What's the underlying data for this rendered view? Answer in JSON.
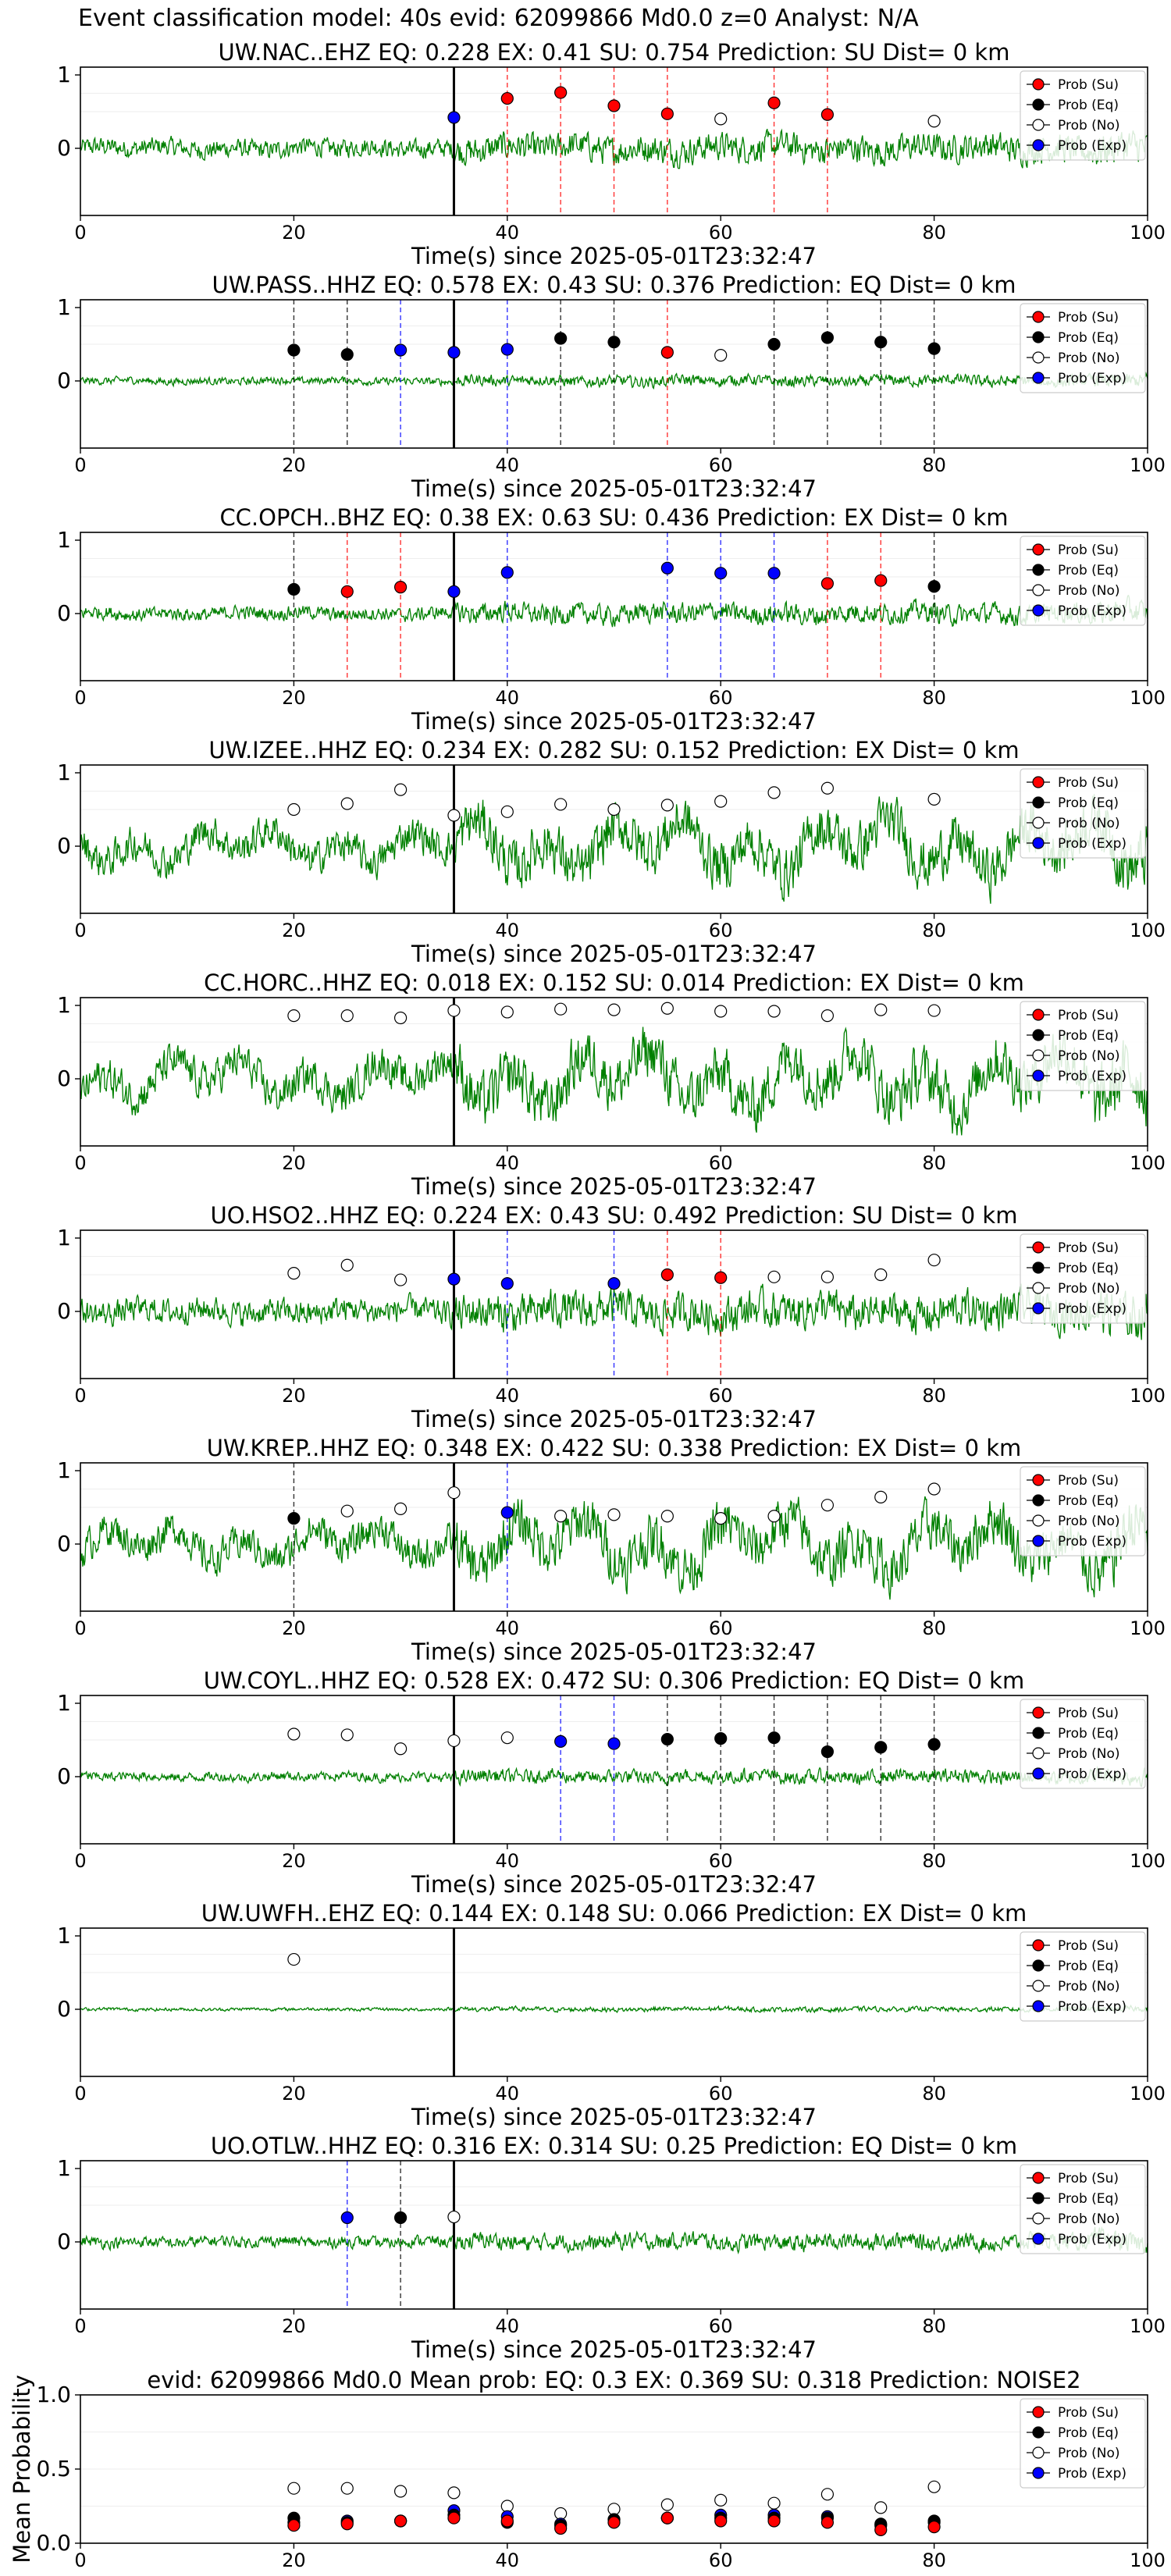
{
  "figure": {
    "suptitle": "Event classification model: 40s evid: 62099866 Md0.0 z=0 Analyst: N/A"
  },
  "legend": {
    "placement": "top-right",
    "entries": [
      {
        "key": "su",
        "label": "Prob (Su)",
        "color": "#ff0000",
        "fill": true
      },
      {
        "key": "eq",
        "label": "Prob (Eq)",
        "color": "#000000",
        "fill": true
      },
      {
        "key": "no",
        "label": "Prob (No)",
        "color": "#ffffff",
        "fill": false
      },
      {
        "key": "exp",
        "label": "Prob (Exp)",
        "color": "#0000ff",
        "fill": true
      }
    ]
  },
  "colors": {
    "waveform": "#008000",
    "su": "#ff0000",
    "eq": "#000000",
    "exp": "#0000ff",
    "no": "#ffffff",
    "event_line": "#000000",
    "su_line": "#ff0000",
    "eq_line": "#000000",
    "exp_line": "#0000ff"
  },
  "chart_data": [
    {
      "type": "line",
      "panel": "waveform",
      "title": "UW.NAC..EHZ   EQ: 0.228  EX: 0.41  SU: 0.754   Prediction: SU    Dist= 0 km",
      "xlabel": "Time(s) since 2025-05-01T23:32:47",
      "ylabel": "",
      "xlim": [
        0,
        100
      ],
      "xticks": [
        "0",
        "20",
        "40",
        "60",
        "80",
        "100"
      ],
      "yticks": [
        "0",
        "1"
      ],
      "event_time": 35,
      "noise_amp": 0.3,
      "points": [
        {
          "t": 35,
          "class": "exp",
          "p": 0.42
        },
        {
          "t": 40,
          "class": "su",
          "p": 0.68
        },
        {
          "t": 45,
          "class": "su",
          "p": 0.76
        },
        {
          "t": 50,
          "class": "su",
          "p": 0.58
        },
        {
          "t": 55,
          "class": "su",
          "p": 0.47
        },
        {
          "t": 60,
          "class": "no",
          "p": 0.4
        },
        {
          "t": 65,
          "class": "su",
          "p": 0.62
        },
        {
          "t": 70,
          "class": "su",
          "p": 0.46
        },
        {
          "t": 80,
          "class": "no",
          "p": 0.37
        }
      ]
    },
    {
      "type": "line",
      "panel": "waveform",
      "title": "UW.PASS..HHZ   EQ: 0.578  EX: 0.43  SU: 0.376   Prediction: EQ    Dist= 0 km",
      "xlabel": "Time(s) since 2025-05-01T23:32:47",
      "ylabel": "",
      "xlim": [
        0,
        100
      ],
      "xticks": [
        "0",
        "20",
        "40",
        "60",
        "80",
        "100"
      ],
      "yticks": [
        "0",
        "1"
      ],
      "event_time": 35,
      "noise_amp": 0.12,
      "points": [
        {
          "t": 20,
          "class": "eq",
          "p": 0.42
        },
        {
          "t": 25,
          "class": "eq",
          "p": 0.36
        },
        {
          "t": 30,
          "class": "exp",
          "p": 0.42
        },
        {
          "t": 35,
          "class": "exp",
          "p": 0.39
        },
        {
          "t": 40,
          "class": "exp",
          "p": 0.43
        },
        {
          "t": 45,
          "class": "eq",
          "p": 0.58
        },
        {
          "t": 50,
          "class": "eq",
          "p": 0.53
        },
        {
          "t": 55,
          "class": "su",
          "p": 0.39
        },
        {
          "t": 60,
          "class": "no",
          "p": 0.35
        },
        {
          "t": 65,
          "class": "eq",
          "p": 0.5
        },
        {
          "t": 70,
          "class": "eq",
          "p": 0.59
        },
        {
          "t": 75,
          "class": "eq",
          "p": 0.53
        },
        {
          "t": 80,
          "class": "eq",
          "p": 0.44
        }
      ]
    },
    {
      "type": "line",
      "panel": "waveform",
      "title": "CC.OPCH..BHZ   EQ: 0.38  EX: 0.63  SU: 0.436   Prediction: EX    Dist= 0 km",
      "xlabel": "Time(s) since 2025-05-01T23:32:47",
      "ylabel": "",
      "xlim": [
        0,
        100
      ],
      "xticks": [
        "0",
        "20",
        "40",
        "60",
        "80",
        "100"
      ],
      "yticks": [
        "0",
        "1"
      ],
      "event_time": 35,
      "noise_amp": 0.22,
      "points": [
        {
          "t": 20,
          "class": "eq",
          "p": 0.33
        },
        {
          "t": 25,
          "class": "su",
          "p": 0.3
        },
        {
          "t": 30,
          "class": "su",
          "p": 0.36
        },
        {
          "t": 35,
          "class": "exp",
          "p": 0.3
        },
        {
          "t": 40,
          "class": "exp",
          "p": 0.56
        },
        {
          "t": 55,
          "class": "exp",
          "p": 0.62
        },
        {
          "t": 60,
          "class": "exp",
          "p": 0.55
        },
        {
          "t": 65,
          "class": "exp",
          "p": 0.55
        },
        {
          "t": 70,
          "class": "su",
          "p": 0.41
        },
        {
          "t": 75,
          "class": "su",
          "p": 0.45
        },
        {
          "t": 80,
          "class": "eq",
          "p": 0.37
        }
      ]
    },
    {
      "type": "line",
      "panel": "waveform",
      "title": "UW.IZEE..HHZ   EQ: 0.234  EX: 0.282  SU: 0.152   Prediction: EX    Dist= 0 km",
      "xlabel": "Time(s) since 2025-05-01T23:32:47",
      "ylabel": "",
      "xlim": [
        0,
        100
      ],
      "xticks": [
        "0",
        "20",
        "40",
        "60",
        "80",
        "100"
      ],
      "yticks": [
        "0",
        "1"
      ],
      "event_time": 35,
      "noise_amp": 0.55,
      "points": [
        {
          "t": 20,
          "class": "no",
          "p": 0.5
        },
        {
          "t": 25,
          "class": "no",
          "p": 0.58
        },
        {
          "t": 30,
          "class": "no",
          "p": 0.77
        },
        {
          "t": 35,
          "class": "no",
          "p": 0.42
        },
        {
          "t": 40,
          "class": "no",
          "p": 0.47
        },
        {
          "t": 45,
          "class": "no",
          "p": 0.57
        },
        {
          "t": 50,
          "class": "no",
          "p": 0.5
        },
        {
          "t": 55,
          "class": "no",
          "p": 0.56
        },
        {
          "t": 60,
          "class": "no",
          "p": 0.61
        },
        {
          "t": 65,
          "class": "no",
          "p": 0.73
        },
        {
          "t": 70,
          "class": "no",
          "p": 0.79
        },
        {
          "t": 80,
          "class": "no",
          "p": 0.64
        }
      ]
    },
    {
      "type": "line",
      "panel": "waveform",
      "title": "CC.HORC..HHZ   EQ: 0.018  EX: 0.152  SU: 0.014   Prediction: EX    Dist= 0 km",
      "xlabel": "Time(s) since 2025-05-01T23:32:47",
      "ylabel": "",
      "xlim": [
        0,
        100
      ],
      "xticks": [
        "0",
        "20",
        "40",
        "60",
        "80",
        "100"
      ],
      "yticks": [
        "0",
        "1"
      ],
      "event_time": 35,
      "noise_amp": 0.6,
      "points": [
        {
          "t": 20,
          "class": "no",
          "p": 0.86
        },
        {
          "t": 25,
          "class": "no",
          "p": 0.86
        },
        {
          "t": 30,
          "class": "no",
          "p": 0.83
        },
        {
          "t": 35,
          "class": "no",
          "p": 0.93
        },
        {
          "t": 40,
          "class": "no",
          "p": 0.91
        },
        {
          "t": 45,
          "class": "no",
          "p": 0.95
        },
        {
          "t": 50,
          "class": "no",
          "p": 0.94
        },
        {
          "t": 55,
          "class": "no",
          "p": 0.96
        },
        {
          "t": 60,
          "class": "no",
          "p": 0.92
        },
        {
          "t": 65,
          "class": "no",
          "p": 0.92
        },
        {
          "t": 70,
          "class": "no",
          "p": 0.86
        },
        {
          "t": 75,
          "class": "no",
          "p": 0.94
        },
        {
          "t": 80,
          "class": "no",
          "p": 0.93
        }
      ]
    },
    {
      "type": "line",
      "panel": "waveform",
      "title": "UO.HSO2..HHZ   EQ: 0.224  EX: 0.43  SU: 0.492   Prediction: SU    Dist= 0 km",
      "xlabel": "Time(s) since 2025-05-01T23:32:47",
      "ylabel": "",
      "xlim": [
        0,
        100
      ],
      "xticks": [
        "0",
        "20",
        "40",
        "60",
        "80",
        "100"
      ],
      "yticks": [
        "0",
        "1"
      ],
      "event_time": 35,
      "noise_amp": 0.4,
      "points": [
        {
          "t": 20,
          "class": "no",
          "p": 0.52
        },
        {
          "t": 25,
          "class": "no",
          "p": 0.63
        },
        {
          "t": 30,
          "class": "no",
          "p": 0.43
        },
        {
          "t": 35,
          "class": "exp",
          "p": 0.44
        },
        {
          "t": 40,
          "class": "exp",
          "p": 0.38
        },
        {
          "t": 50,
          "class": "exp",
          "p": 0.38
        },
        {
          "t": 55,
          "class": "su",
          "p": 0.5
        },
        {
          "t": 60,
          "class": "su",
          "p": 0.46
        },
        {
          "t": 65,
          "class": "no",
          "p": 0.47
        },
        {
          "t": 70,
          "class": "no",
          "p": 0.47
        },
        {
          "t": 75,
          "class": "no",
          "p": 0.5
        },
        {
          "t": 80,
          "class": "no",
          "p": 0.7
        }
      ]
    },
    {
      "type": "line",
      "panel": "waveform",
      "title": "UW.KREP..HHZ   EQ: 0.348  EX: 0.422  SU: 0.338   Prediction: EX    Dist= 0 km",
      "xlabel": "Time(s) since 2025-05-01T23:32:47",
      "ylabel": "",
      "xlim": [
        0,
        100
      ],
      "xticks": [
        "0",
        "20",
        "40",
        "60",
        "80",
        "100"
      ],
      "yticks": [
        "0",
        "1"
      ],
      "event_time": 35,
      "noise_amp": 0.55,
      "points": [
        {
          "t": 20,
          "class": "eq",
          "p": 0.35
        },
        {
          "t": 25,
          "class": "no",
          "p": 0.45
        },
        {
          "t": 30,
          "class": "no",
          "p": 0.48
        },
        {
          "t": 35,
          "class": "no",
          "p": 0.7
        },
        {
          "t": 40,
          "class": "exp",
          "p": 0.43
        },
        {
          "t": 45,
          "class": "no",
          "p": 0.38
        },
        {
          "t": 50,
          "class": "no",
          "p": 0.4
        },
        {
          "t": 55,
          "class": "no",
          "p": 0.38
        },
        {
          "t": 60,
          "class": "no",
          "p": 0.35
        },
        {
          "t": 65,
          "class": "no",
          "p": 0.38
        },
        {
          "t": 70,
          "class": "no",
          "p": 0.53
        },
        {
          "t": 75,
          "class": "no",
          "p": 0.64
        },
        {
          "t": 80,
          "class": "no",
          "p": 0.75
        }
      ]
    },
    {
      "type": "line",
      "panel": "waveform",
      "title": "UW.COYL..HHZ   EQ: 0.528  EX: 0.472  SU: 0.306   Prediction: EQ    Dist= 0 km",
      "xlabel": "Time(s) since 2025-05-01T23:32:47",
      "ylabel": "",
      "xlim": [
        0,
        100
      ],
      "xticks": [
        "0",
        "20",
        "40",
        "60",
        "80",
        "100"
      ],
      "yticks": [
        "0",
        "1"
      ],
      "event_time": 35,
      "noise_amp": 0.15,
      "points": [
        {
          "t": 20,
          "class": "no",
          "p": 0.58
        },
        {
          "t": 25,
          "class": "no",
          "p": 0.57
        },
        {
          "t": 30,
          "class": "no",
          "p": 0.38
        },
        {
          "t": 35,
          "class": "no",
          "p": 0.49
        },
        {
          "t": 40,
          "class": "no",
          "p": 0.53
        },
        {
          "t": 45,
          "class": "exp",
          "p": 0.48
        },
        {
          "t": 50,
          "class": "exp",
          "p": 0.45
        },
        {
          "t": 55,
          "class": "eq",
          "p": 0.51
        },
        {
          "t": 60,
          "class": "eq",
          "p": 0.52
        },
        {
          "t": 65,
          "class": "eq",
          "p": 0.53
        },
        {
          "t": 70,
          "class": "eq",
          "p": 0.34
        },
        {
          "t": 75,
          "class": "eq",
          "p": 0.4
        },
        {
          "t": 80,
          "class": "eq",
          "p": 0.44
        }
      ]
    },
    {
      "type": "line",
      "panel": "waveform",
      "title": "UW.UWFH..EHZ   EQ: 0.144  EX: 0.148  SU: 0.066   Prediction: EX    Dist= 0 km",
      "xlabel": "Time(s) since 2025-05-01T23:32:47",
      "ylabel": "",
      "xlim": [
        0,
        100
      ],
      "xticks": [
        "0",
        "20",
        "40",
        "60",
        "80",
        "100"
      ],
      "yticks": [
        "0",
        "1"
      ],
      "event_time": 35,
      "noise_amp": 0.05,
      "points": [
        {
          "t": 20,
          "class": "no",
          "p": 0.68
        }
      ]
    },
    {
      "type": "line",
      "panel": "waveform",
      "title": "UO.OTLW..HHZ   EQ: 0.316  EX: 0.314  SU: 0.25   Prediction: EQ    Dist= 0 km",
      "xlabel": "Time(s) since 2025-05-01T23:32:47",
      "ylabel": "",
      "xlim": [
        0,
        100
      ],
      "xticks": [
        "0",
        "20",
        "40",
        "60",
        "80",
        "100"
      ],
      "yticks": [
        "0",
        "1"
      ],
      "event_time": 35,
      "noise_amp": 0.18,
      "points": [
        {
          "t": 25,
          "class": "exp",
          "p": 0.33
        },
        {
          "t": 30,
          "class": "eq",
          "p": 0.33
        },
        {
          "t": 35,
          "class": "no",
          "p": 0.34
        }
      ]
    },
    {
      "type": "scatter",
      "panel": "mean",
      "title": "evid: 62099866  Md0.0    Mean prob:   EQ: 0.3  EX: 0.369  SU: 0.318   Prediction: NOISE2",
      "xlabel": "",
      "ylabel": "Mean Probability",
      "xlim": [
        0,
        100
      ],
      "ylim": [
        0,
        1
      ],
      "xticks": [
        "0",
        "20",
        "40",
        "60",
        "80",
        "100"
      ],
      "yticks": [
        "0.0",
        "0.5",
        "1.0"
      ],
      "x": [
        20,
        25,
        30,
        35,
        40,
        45,
        50,
        55,
        60,
        65,
        70,
        75,
        80
      ],
      "series": [
        {
          "name": "Prob (No)",
          "key": "no",
          "values": [
            0.37,
            0.37,
            0.35,
            0.34,
            0.25,
            0.2,
            0.23,
            0.26,
            0.29,
            0.27,
            0.33,
            0.24,
            0.38
          ]
        },
        {
          "name": "Prob (Exp)",
          "key": "exp",
          "values": [
            0.14,
            0.15,
            0.15,
            0.22,
            0.18,
            0.13,
            0.16,
            0.17,
            0.19,
            0.19,
            0.18,
            0.12,
            0.14
          ]
        },
        {
          "name": "Prob (Eq)",
          "key": "eq",
          "values": [
            0.17,
            0.14,
            0.15,
            0.19,
            0.14,
            0.12,
            0.16,
            0.17,
            0.17,
            0.17,
            0.17,
            0.13,
            0.15
          ]
        },
        {
          "name": "Prob (Su)",
          "key": "su",
          "values": [
            0.12,
            0.13,
            0.15,
            0.17,
            0.15,
            0.1,
            0.14,
            0.17,
            0.15,
            0.15,
            0.14,
            0.09,
            0.11
          ]
        }
      ]
    }
  ]
}
